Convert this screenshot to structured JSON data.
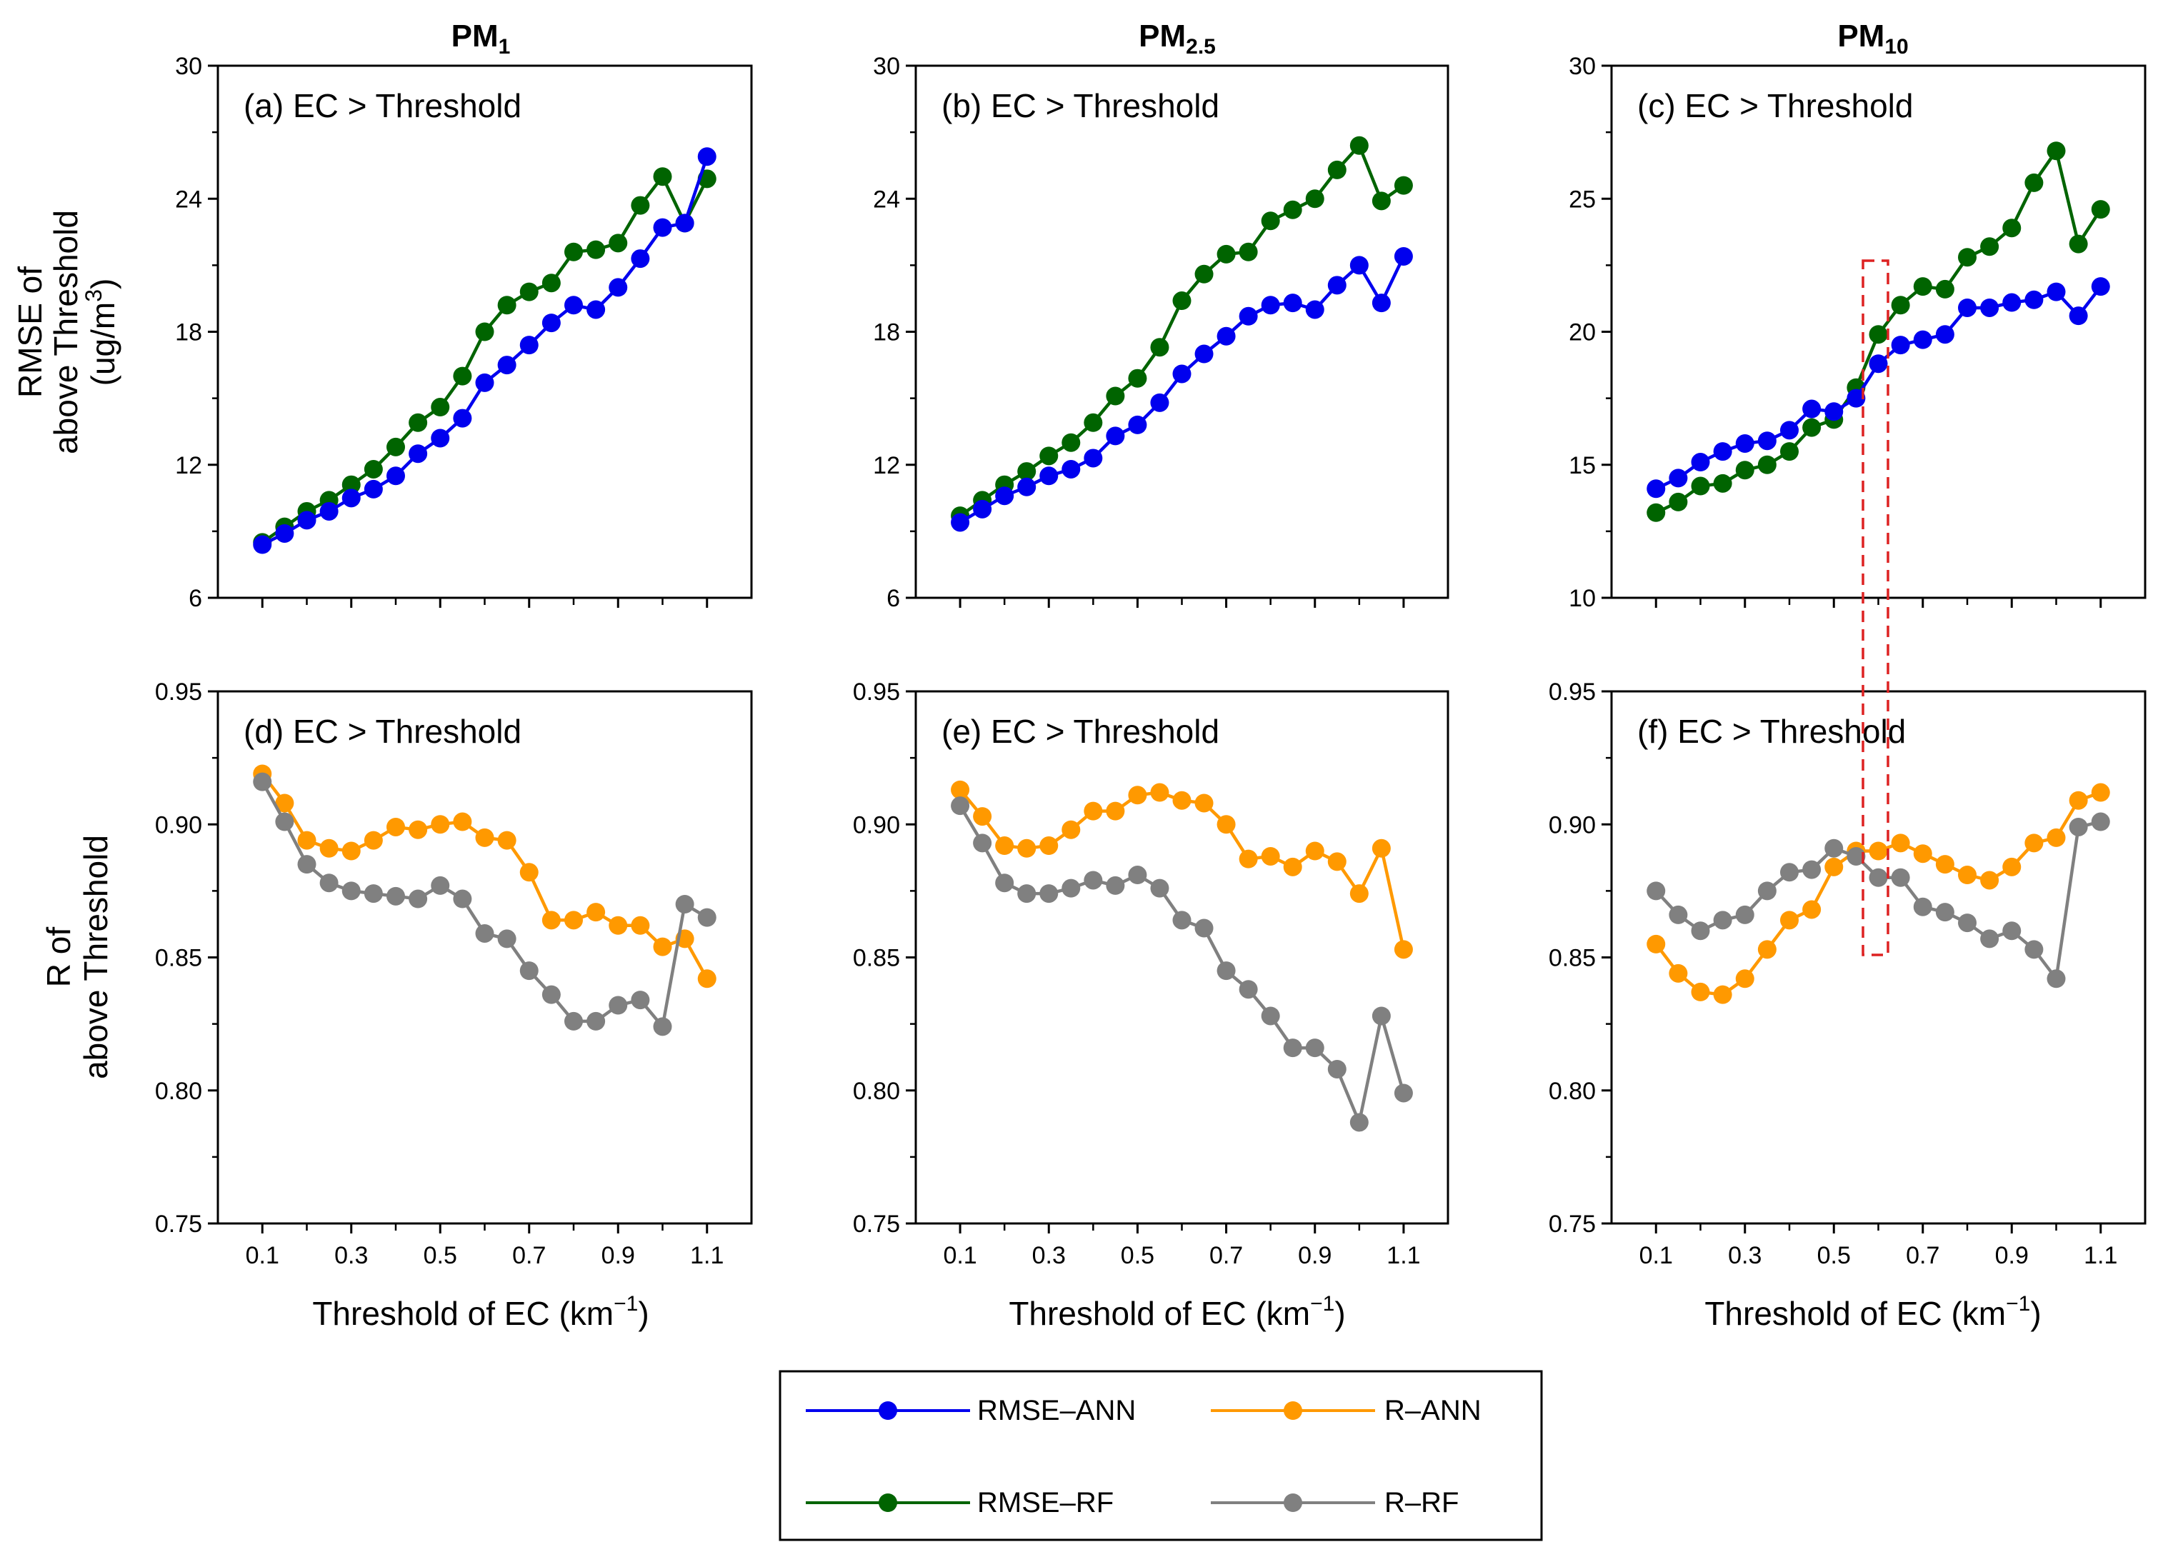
{
  "colors": {
    "rmse_ann": "#0000ee",
    "rmse_rf": "#006400",
    "r_ann": "#ff9900",
    "r_rf": "#808080",
    "highlight": "#dd2222"
  },
  "axes": {
    "x_label_main": "Threshold of EC (km",
    "x_label_sup": "−1",
    "x_label_end": ")",
    "x_ticks": [
      "0.1",
      "0.3",
      "0.5",
      "0.7",
      "0.9",
      "1.1"
    ],
    "rmse_label_line1": "RMSE of",
    "rmse_label_line2": "above Threshold",
    "rmse_label_line3": "(ug/m",
    "rmse_label_sup": "3",
    "rmse_label_end": ")",
    "r_label_line1": "R of",
    "r_label_line2": "above Threshold"
  },
  "columns": [
    {
      "title_main": "PM",
      "title_sub": "1"
    },
    {
      "title_main": "PM",
      "title_sub": "2.5"
    },
    {
      "title_main": "PM",
      "title_sub": "10"
    }
  ],
  "legend": {
    "rmse_ann": "RMSE–ANN",
    "rmse_rf": "RMSE–RF",
    "r_ann": "R–ANN",
    "r_rf": "R–RF"
  },
  "chart_data": [
    {
      "id": "a",
      "type": "line",
      "panel_label": "(a) EC > Threshold",
      "ylim": [
        6,
        30
      ],
      "yticks": [
        6,
        12,
        18,
        24,
        30
      ],
      "x": [
        0.1,
        0.15,
        0.2,
        0.25,
        0.3,
        0.35,
        0.4,
        0.45,
        0.5,
        0.55,
        0.6,
        0.65,
        0.7,
        0.75,
        0.8,
        0.85,
        0.9,
        0.95,
        1.0,
        1.05,
        1.1
      ],
      "series": [
        {
          "name": "RMSE–RF",
          "key": "rmse_rf",
          "values": [
            8.5,
            9.2,
            9.9,
            10.4,
            11.1,
            11.8,
            12.8,
            13.9,
            14.6,
            16.0,
            18.0,
            19.2,
            19.8,
            20.2,
            21.6,
            21.7,
            22.0,
            23.7,
            25.0,
            22.9,
            24.9
          ]
        },
        {
          "name": "RMSE–ANN",
          "key": "rmse_ann",
          "values": [
            8.4,
            8.9,
            9.5,
            9.9,
            10.5,
            10.9,
            11.5,
            12.5,
            13.2,
            14.1,
            15.7,
            16.5,
            17.4,
            18.4,
            19.2,
            19.0,
            20.0,
            21.3,
            22.7,
            22.9,
            25.9
          ]
        }
      ]
    },
    {
      "id": "b",
      "type": "line",
      "panel_label": "(b) EC > Threshold",
      "ylim": [
        6,
        30
      ],
      "yticks": [
        6,
        12,
        18,
        24,
        30
      ],
      "x": [
        0.1,
        0.15,
        0.2,
        0.25,
        0.3,
        0.35,
        0.4,
        0.45,
        0.5,
        0.55,
        0.6,
        0.65,
        0.7,
        0.75,
        0.8,
        0.85,
        0.9,
        0.95,
        1.0,
        1.05,
        1.1
      ],
      "series": [
        {
          "name": "RMSE–RF",
          "key": "rmse_rf",
          "values": [
            9.7,
            10.4,
            11.1,
            11.7,
            12.4,
            13.0,
            13.9,
            15.1,
            15.9,
            17.3,
            19.4,
            20.6,
            21.5,
            21.6,
            23.0,
            23.5,
            24.0,
            25.3,
            26.4,
            23.9,
            24.6
          ]
        },
        {
          "name": "RMSE–ANN",
          "key": "rmse_ann",
          "values": [
            9.4,
            10.0,
            10.6,
            11.0,
            11.5,
            11.8,
            12.3,
            13.3,
            13.8,
            14.8,
            16.1,
            17.0,
            17.8,
            18.7,
            19.2,
            19.3,
            19.0,
            20.1,
            21.0,
            19.3,
            21.4
          ]
        }
      ]
    },
    {
      "id": "c",
      "type": "line",
      "panel_label": "(c) EC > Threshold",
      "ylim": [
        10,
        30
      ],
      "yticks": [
        10,
        15,
        20,
        25,
        30
      ],
      "x": [
        0.1,
        0.15,
        0.2,
        0.25,
        0.3,
        0.35,
        0.4,
        0.45,
        0.5,
        0.55,
        0.6,
        0.65,
        0.7,
        0.75,
        0.8,
        0.85,
        0.9,
        0.95,
        1.0,
        1.05,
        1.1
      ],
      "series": [
        {
          "name": "RMSE–RF",
          "key": "rmse_rf",
          "values": [
            13.2,
            13.6,
            14.2,
            14.3,
            14.8,
            15.0,
            15.5,
            16.4,
            16.7,
            17.9,
            19.9,
            21.0,
            21.7,
            21.6,
            22.8,
            23.2,
            23.9,
            25.6,
            26.8,
            23.3,
            24.6
          ]
        },
        {
          "name": "RMSE–ANN",
          "key": "rmse_ann",
          "values": [
            14.1,
            14.5,
            15.1,
            15.5,
            15.8,
            15.9,
            16.3,
            17.1,
            17.0,
            17.5,
            18.8,
            19.5,
            19.7,
            19.9,
            20.9,
            20.9,
            21.1,
            21.2,
            21.5,
            20.6,
            21.7
          ]
        }
      ]
    },
    {
      "id": "d",
      "type": "line",
      "panel_label": "(d) EC > Threshold",
      "ylim": [
        0.75,
        0.95
      ],
      "yticks": [
        0.75,
        0.8,
        0.85,
        0.9,
        0.95
      ],
      "x": [
        0.1,
        0.15,
        0.2,
        0.25,
        0.3,
        0.35,
        0.4,
        0.45,
        0.5,
        0.55,
        0.6,
        0.65,
        0.7,
        0.75,
        0.8,
        0.85,
        0.9,
        0.95,
        1.0,
        1.05,
        1.1
      ],
      "series": [
        {
          "name": "R–ANN",
          "key": "r_ann",
          "values": [
            0.919,
            0.908,
            0.894,
            0.891,
            0.89,
            0.894,
            0.899,
            0.898,
            0.9,
            0.901,
            0.895,
            0.894,
            0.882,
            0.864,
            0.864,
            0.867,
            0.862,
            0.862,
            0.854,
            0.857,
            0.842
          ]
        },
        {
          "name": "R–RF",
          "key": "r_rf",
          "values": [
            0.916,
            0.901,
            0.885,
            0.878,
            0.875,
            0.874,
            0.873,
            0.872,
            0.877,
            0.872,
            0.859,
            0.857,
            0.845,
            0.836,
            0.826,
            0.826,
            0.832,
            0.834,
            0.824,
            0.87,
            0.865
          ]
        }
      ]
    },
    {
      "id": "e",
      "type": "line",
      "panel_label": "(e) EC > Threshold",
      "ylim": [
        0.75,
        0.95
      ],
      "yticks": [
        0.75,
        0.8,
        0.85,
        0.9,
        0.95
      ],
      "x": [
        0.1,
        0.15,
        0.2,
        0.25,
        0.3,
        0.35,
        0.4,
        0.45,
        0.5,
        0.55,
        0.6,
        0.65,
        0.7,
        0.75,
        0.8,
        0.85,
        0.9,
        0.95,
        1.0,
        1.05,
        1.1
      ],
      "series": [
        {
          "name": "R–ANN",
          "key": "r_ann",
          "values": [
            0.913,
            0.903,
            0.892,
            0.891,
            0.892,
            0.898,
            0.905,
            0.905,
            0.911,
            0.912,
            0.909,
            0.908,
            0.9,
            0.887,
            0.888,
            0.884,
            0.89,
            0.886,
            0.874,
            0.891,
            0.853
          ]
        },
        {
          "name": "R–RF",
          "key": "r_rf",
          "values": [
            0.907,
            0.893,
            0.878,
            0.874,
            0.874,
            0.876,
            0.879,
            0.877,
            0.881,
            0.876,
            0.864,
            0.861,
            0.845,
            0.838,
            0.828,
            0.816,
            0.816,
            0.808,
            0.788,
            0.828,
            0.799
          ]
        }
      ]
    },
    {
      "id": "f",
      "type": "line",
      "panel_label": "(f) EC > Threshold",
      "ylim": [
        0.75,
        0.95
      ],
      "yticks": [
        0.75,
        0.8,
        0.85,
        0.9,
        0.95
      ],
      "x": [
        0.1,
        0.15,
        0.2,
        0.25,
        0.3,
        0.35,
        0.4,
        0.45,
        0.5,
        0.55,
        0.6,
        0.65,
        0.7,
        0.75,
        0.8,
        0.85,
        0.9,
        0.95,
        1.0,
        1.05,
        1.1
      ],
      "series": [
        {
          "name": "R–ANN",
          "key": "r_ann",
          "values": [
            0.855,
            0.844,
            0.837,
            0.836,
            0.842,
            0.853,
            0.864,
            0.868,
            0.884,
            0.89,
            0.89,
            0.893,
            0.889,
            0.885,
            0.881,
            0.879,
            0.884,
            0.893,
            0.895,
            0.909,
            0.912
          ]
        },
        {
          "name": "R–RF",
          "key": "r_rf",
          "values": [
            0.875,
            0.866,
            0.86,
            0.864,
            0.866,
            0.875,
            0.882,
            0.883,
            0.891,
            0.888,
            0.88,
            0.88,
            0.869,
            0.867,
            0.863,
            0.857,
            0.86,
            0.853,
            0.842,
            0.899,
            0.901
          ]
        }
      ]
    }
  ]
}
